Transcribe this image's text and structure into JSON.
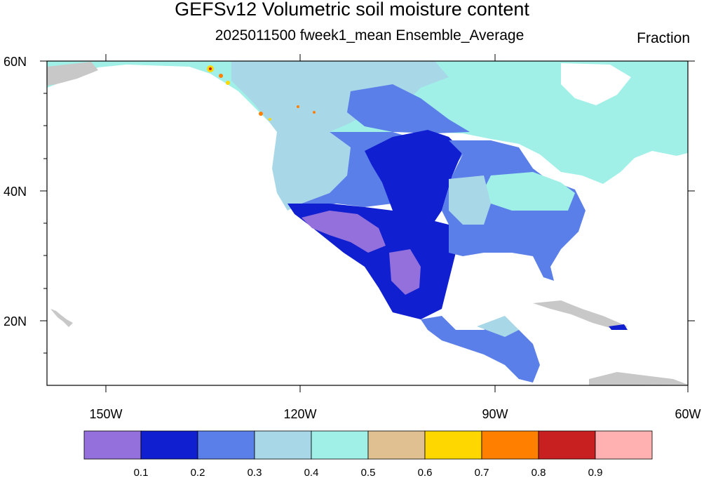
{
  "title": "GEFSv12 Volumetric soil moisture content",
  "subtitle": "2025011500 fweek1_mean Ensemble_Average",
  "units": "Fraction",
  "map": {
    "projection": "cylindrical equidistant",
    "lon_range": [
      -161,
      -60
    ],
    "lat_range": [
      10,
      60
    ],
    "lat_ticks": [
      "20N",
      "40N",
      "60N"
    ],
    "lon_ticks": [
      "150W",
      "120W",
      "90W",
      "60W"
    ]
  },
  "colorbar": {
    "bounds": [
      "0.1",
      "0.2",
      "0.3",
      "0.4",
      "0.5",
      "0.6",
      "0.7",
      "0.8",
      "0.9"
    ],
    "colors": [
      "#9370db",
      "#1020d0",
      "#5b7fe8",
      "#a8d8e8",
      "#a0f0e8",
      "#e0c090",
      "#ffd700",
      "#ff7f00",
      "#c82020",
      "#ffb0b0"
    ]
  },
  "land_colors": {
    "no_data": "#c8c8c8",
    "land_0_1": "#9370db",
    "land_0_2": "#1020d0",
    "land_0_3": "#5b7fe8",
    "land_0_4": "#a8d8e8",
    "land_0_5": "#a0f0e8"
  }
}
